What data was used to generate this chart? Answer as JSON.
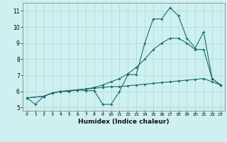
{
  "xlabel": "Humidex (Indice chaleur)",
  "bg_color": "#cff0f0",
  "grid_color": "#b8dede",
  "line_color": "#1a6b6b",
  "xlim": [
    -0.5,
    23.5
  ],
  "ylim": [
    4.8,
    11.5
  ],
  "xticks": [
    0,
    1,
    2,
    3,
    4,
    5,
    6,
    7,
    8,
    9,
    10,
    11,
    12,
    13,
    14,
    15,
    16,
    17,
    18,
    19,
    20,
    21,
    22,
    23
  ],
  "yticks": [
    5,
    6,
    7,
    8,
    9,
    10,
    11
  ],
  "line1_x": [
    0,
    1,
    2,
    3,
    4,
    5,
    6,
    7,
    8,
    9,
    10,
    11,
    12,
    13,
    14,
    15,
    16,
    17,
    18,
    19,
    20,
    21,
    22,
    23
  ],
  "line1_y": [
    5.6,
    5.2,
    5.7,
    5.9,
    6.0,
    6.0,
    6.1,
    6.05,
    6.05,
    5.2,
    5.2,
    6.0,
    7.05,
    7.05,
    9.0,
    10.5,
    10.5,
    11.2,
    10.7,
    9.3,
    8.7,
    9.7,
    6.8,
    6.4
  ],
  "line2_x": [
    0,
    2,
    3,
    4,
    5,
    6,
    7,
    8,
    9,
    10,
    11,
    12,
    13,
    14,
    15,
    16,
    17,
    18,
    19,
    20,
    21,
    22,
    23
  ],
  "line2_y": [
    5.6,
    5.7,
    5.9,
    6.0,
    6.05,
    6.1,
    6.15,
    6.2,
    6.25,
    6.3,
    6.3,
    6.35,
    6.4,
    6.45,
    6.5,
    6.55,
    6.6,
    6.65,
    6.7,
    6.75,
    6.8,
    6.6,
    6.4
  ],
  "line3_x": [
    0,
    2,
    3,
    4,
    5,
    6,
    7,
    8,
    9,
    10,
    11,
    12,
    13,
    14,
    15,
    16,
    17,
    18,
    19,
    20,
    21,
    22,
    23
  ],
  "line3_y": [
    5.6,
    5.7,
    5.9,
    6.0,
    6.05,
    6.1,
    6.15,
    6.25,
    6.4,
    6.6,
    6.8,
    7.1,
    7.5,
    8.0,
    8.6,
    9.0,
    9.3,
    9.3,
    9.0,
    8.6,
    8.6,
    6.8,
    6.4
  ]
}
